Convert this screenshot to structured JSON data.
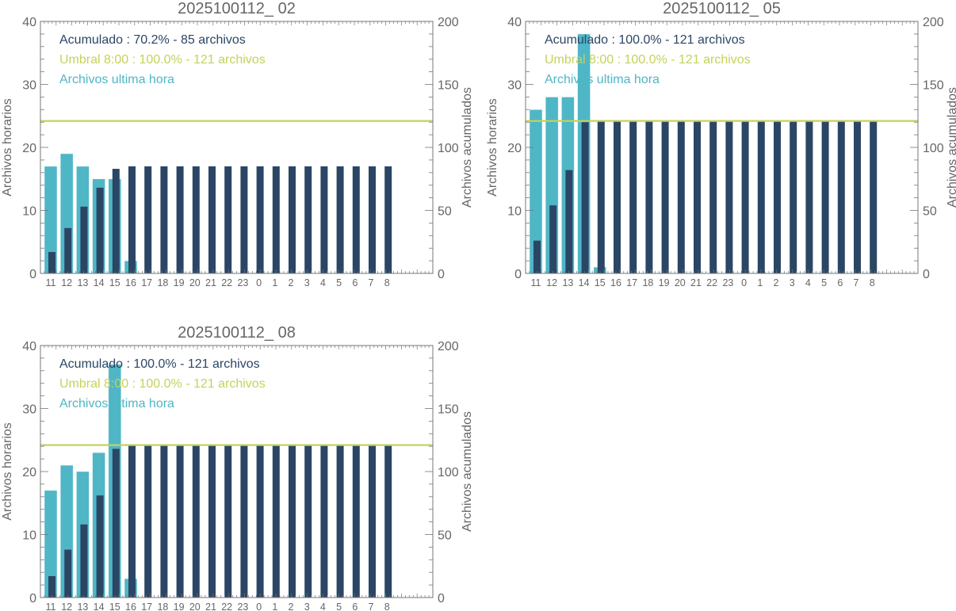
{
  "colors": {
    "cumulative": "#2b4665",
    "hourly": "#4fb6c6",
    "threshold": "#c5d25a",
    "axis": "#666666"
  },
  "chart_data": [
    {
      "type": "bar",
      "title": "2025100112_ 02",
      "ylabel": "Archivos horarios",
      "ylabel_right": "Archivos acumulados",
      "ylim": [
        0,
        40
      ],
      "ylim_right": [
        0,
        200
      ],
      "yticks": [
        "0",
        "10",
        "20",
        "30",
        "40"
      ],
      "yticks_right": [
        "0",
        "50",
        "100",
        "150",
        "200"
      ],
      "categories": [
        "11",
        "12",
        "13",
        "14",
        "15",
        "16",
        "17",
        "18",
        "19",
        "20",
        "21",
        "22",
        "23",
        "0",
        "1",
        "2",
        "3",
        "4",
        "5",
        "6",
        "7",
        "8"
      ],
      "series": [
        {
          "name": "Archivos ultima hora",
          "axis": "left",
          "values": [
            17,
            19,
            17,
            15,
            15,
            2,
            0,
            0,
            0,
            0,
            0,
            0,
            0,
            0,
            0,
            0,
            0,
            0,
            0,
            0,
            0,
            0
          ]
        },
        {
          "name": "Acumulado",
          "axis": "right",
          "values": [
            17,
            36,
            53,
            68,
            83,
            85,
            85,
            85,
            85,
            85,
            85,
            85,
            85,
            85,
            85,
            85,
            85,
            85,
            85,
            85,
            85,
            85
          ]
        }
      ],
      "threshold": 121,
      "legend": [
        "Acumulado : 70.2% - 85 archivos",
        "Umbral 8:00 : 100.0% - 121 archivos",
        "Archivos ultima hora"
      ],
      "legend_placement": "top-left"
    },
    {
      "type": "bar",
      "title": "2025100112_ 05",
      "ylabel": "Archivos horarios",
      "ylabel_right": "Archivos acumulados",
      "ylim": [
        0,
        40
      ],
      "ylim_right": [
        0,
        200
      ],
      "yticks": [
        "0",
        "10",
        "20",
        "30",
        "40"
      ],
      "yticks_right": [
        "0",
        "50",
        "100",
        "150",
        "200"
      ],
      "categories": [
        "11",
        "12",
        "13",
        "14",
        "15",
        "16",
        "17",
        "18",
        "19",
        "20",
        "21",
        "22",
        "23",
        "0",
        "1",
        "2",
        "3",
        "4",
        "5",
        "6",
        "7",
        "8"
      ],
      "series": [
        {
          "name": "Archivos ultima hora",
          "axis": "left",
          "values": [
            26,
            28,
            28,
            38,
            1,
            0,
            0,
            0,
            0,
            0,
            0,
            0,
            0,
            0,
            0,
            0,
            0,
            0,
            0,
            0,
            0,
            0
          ]
        },
        {
          "name": "Acumulado",
          "axis": "right",
          "values": [
            26,
            54,
            82,
            120,
            121,
            121,
            121,
            121,
            121,
            121,
            121,
            121,
            121,
            121,
            121,
            121,
            121,
            121,
            121,
            121,
            121,
            121
          ]
        }
      ],
      "threshold": 121,
      "legend": [
        "Acumulado : 100.0% - 121 archivos",
        "Umbral 8:00 : 100.0% - 121 archivos",
        "Archivos ultima hora"
      ],
      "legend_placement": "top-left"
    },
    {
      "type": "bar",
      "title": "2025100112_ 08",
      "ylabel": "Archivos horarios",
      "ylabel_right": "Archivos acumulados",
      "ylim": [
        0,
        40
      ],
      "ylim_right": [
        0,
        200
      ],
      "yticks": [
        "0",
        "10",
        "20",
        "30",
        "40"
      ],
      "yticks_right": [
        "0",
        "50",
        "100",
        "150",
        "200"
      ],
      "categories": [
        "11",
        "12",
        "13",
        "14",
        "15",
        "16",
        "17",
        "18",
        "19",
        "20",
        "21",
        "22",
        "23",
        "0",
        "1",
        "2",
        "3",
        "4",
        "5",
        "6",
        "7",
        "8"
      ],
      "series": [
        {
          "name": "Archivos ultima hora",
          "axis": "left",
          "values": [
            17,
            21,
            20,
            23,
            37,
            3,
            0,
            0,
            0,
            0,
            0,
            0,
            0,
            0,
            0,
            0,
            0,
            0,
            0,
            0,
            0,
            0
          ]
        },
        {
          "name": "Acumulado",
          "axis": "right",
          "values": [
            17,
            38,
            58,
            81,
            118,
            121,
            121,
            121,
            121,
            121,
            121,
            121,
            121,
            121,
            121,
            121,
            121,
            121,
            121,
            121,
            121,
            121
          ]
        }
      ],
      "threshold": 121,
      "legend": [
        "Acumulado : 100.0% - 121 archivos",
        "Umbral 8:00 : 100.0% - 121 archivos",
        "Archivos ultima hora"
      ],
      "legend_placement": "top-left"
    }
  ]
}
